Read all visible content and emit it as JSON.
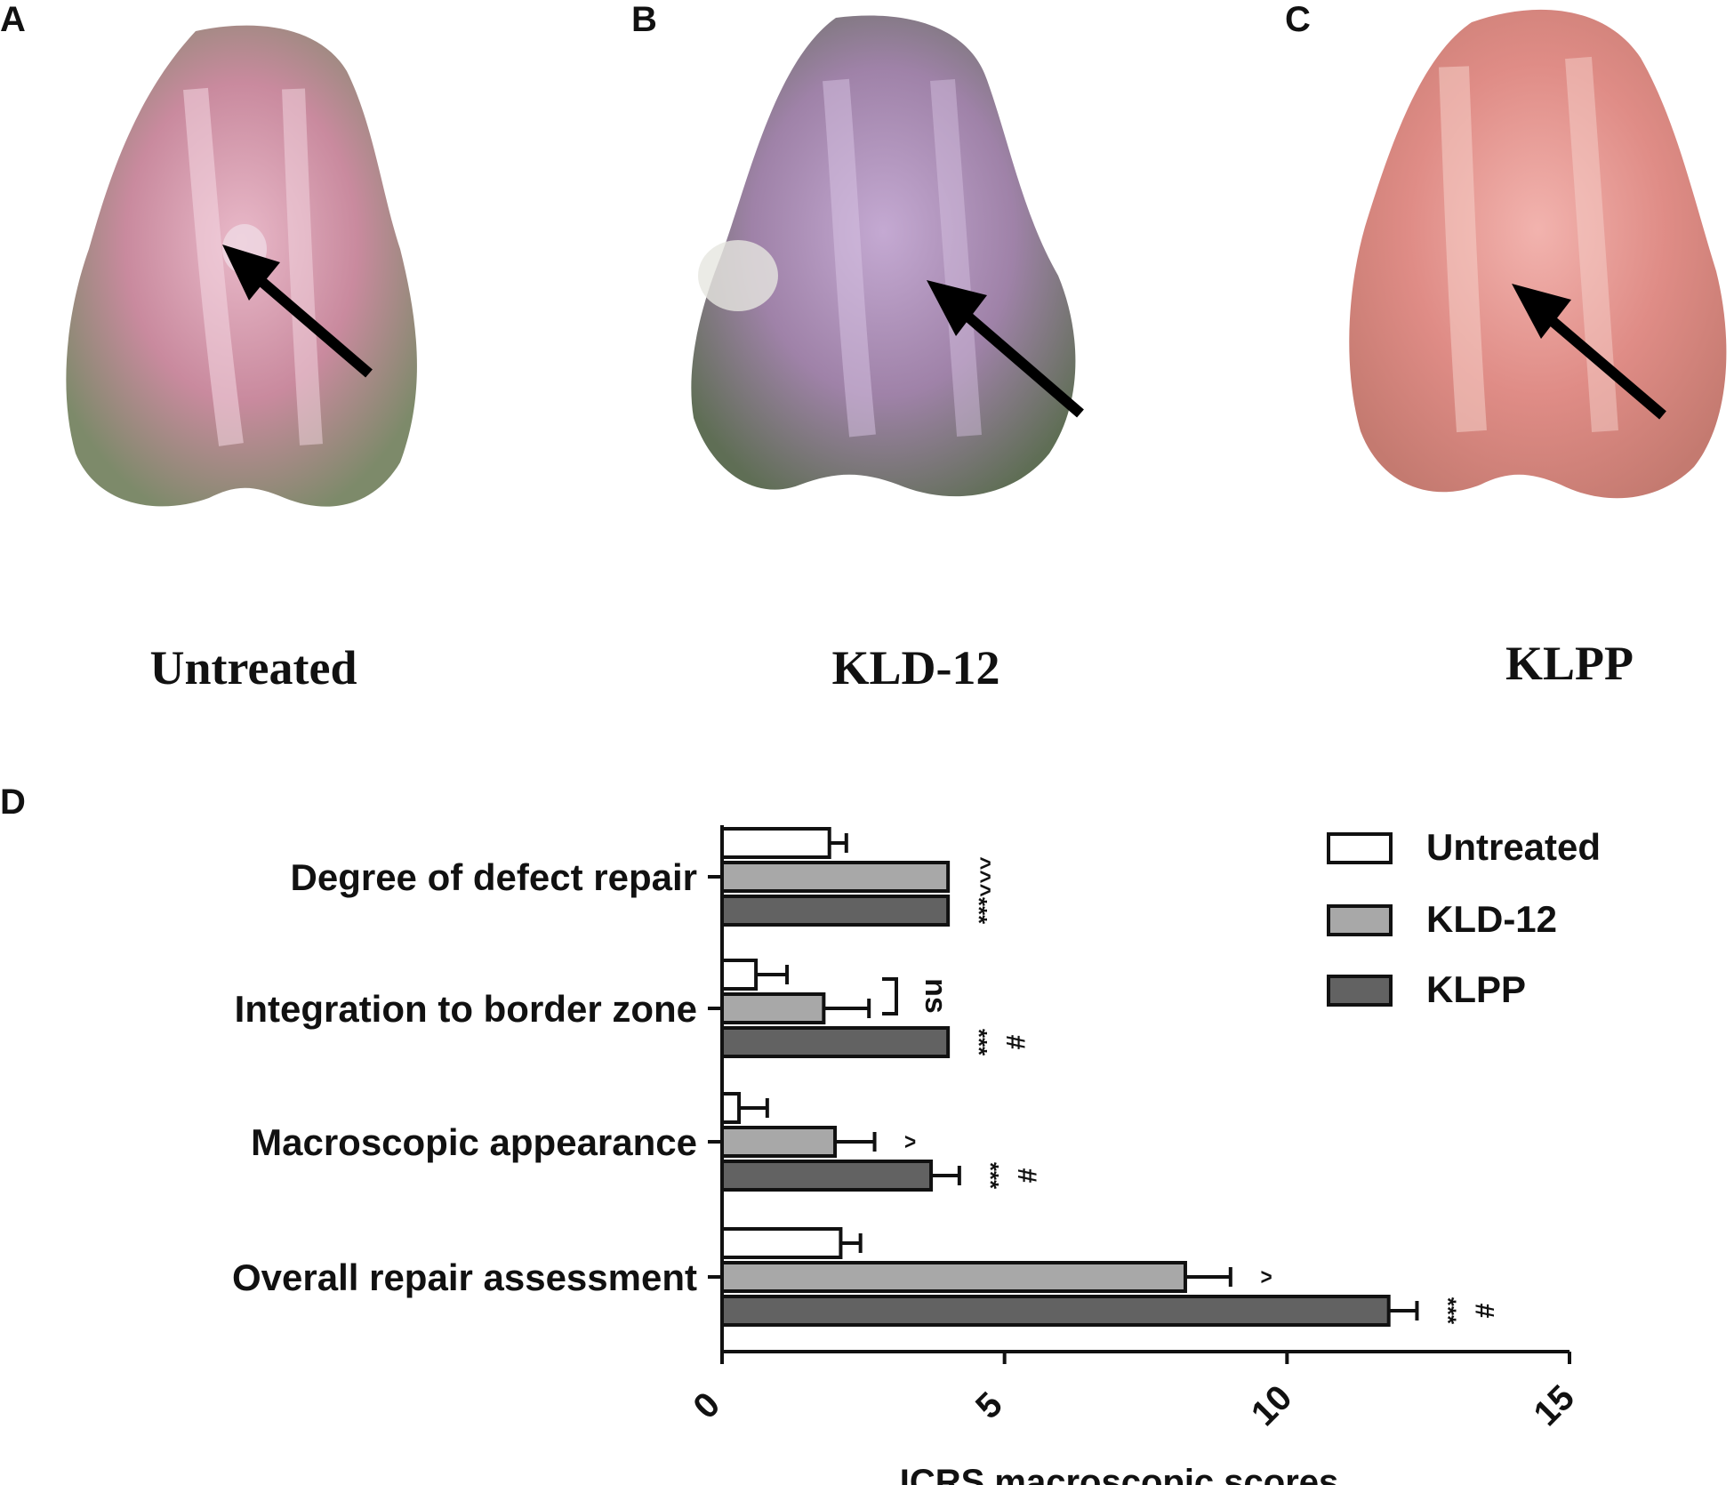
{
  "panels": {
    "a": {
      "letter": "A",
      "caption": "Untreated"
    },
    "b": {
      "letter": "B",
      "caption": "KLD-12"
    },
    "c": {
      "letter": "C",
      "caption": "KLPP"
    },
    "d": {
      "letter": "D"
    }
  },
  "colors": {
    "untreated": "#ffffff",
    "kld12": "#a8a8a8",
    "klpp": "#626262",
    "tissue_a": "#c98a9e",
    "tissue_b": "#9f82a8",
    "tissue_c": "#df8c86"
  },
  "chart_data": {
    "type": "bar",
    "orientation": "horizontal",
    "categories": [
      "Degree of defect repair",
      "Integration to border zone",
      "Macroscopic appearance",
      "Overall repair assessment"
    ],
    "series": [
      {
        "name": "Untreated",
        "values": [
          1.9,
          0.6,
          0.3,
          2.1
        ],
        "errors": [
          0.3,
          0.55,
          0.5,
          0.35
        ]
      },
      {
        "name": "KLD-12",
        "values": [
          4.0,
          1.8,
          2.0,
          8.2
        ],
        "errors": [
          0,
          0.8,
          0.7,
          0.8
        ]
      },
      {
        "name": "KLPP",
        "values": [
          4.0,
          4.0,
          3.7,
          11.8
        ],
        "errors": [
          0,
          0,
          0.5,
          0.5
        ]
      }
    ],
    "annotations": {
      "kld12": [
        "^^^",
        "",
        "^",
        "^"
      ],
      "klpp_stars": [
        "***",
        "***",
        "***",
        "***"
      ],
      "klpp_hash": [
        "",
        "#",
        "#",
        "#"
      ],
      "bracket": "ns"
    },
    "xlim": [
      0,
      15
    ],
    "xticks": [
      "0",
      "5",
      "10",
      "15"
    ],
    "xlabel": "ICRS macroscopic scores",
    "legend_position": "top-right"
  }
}
